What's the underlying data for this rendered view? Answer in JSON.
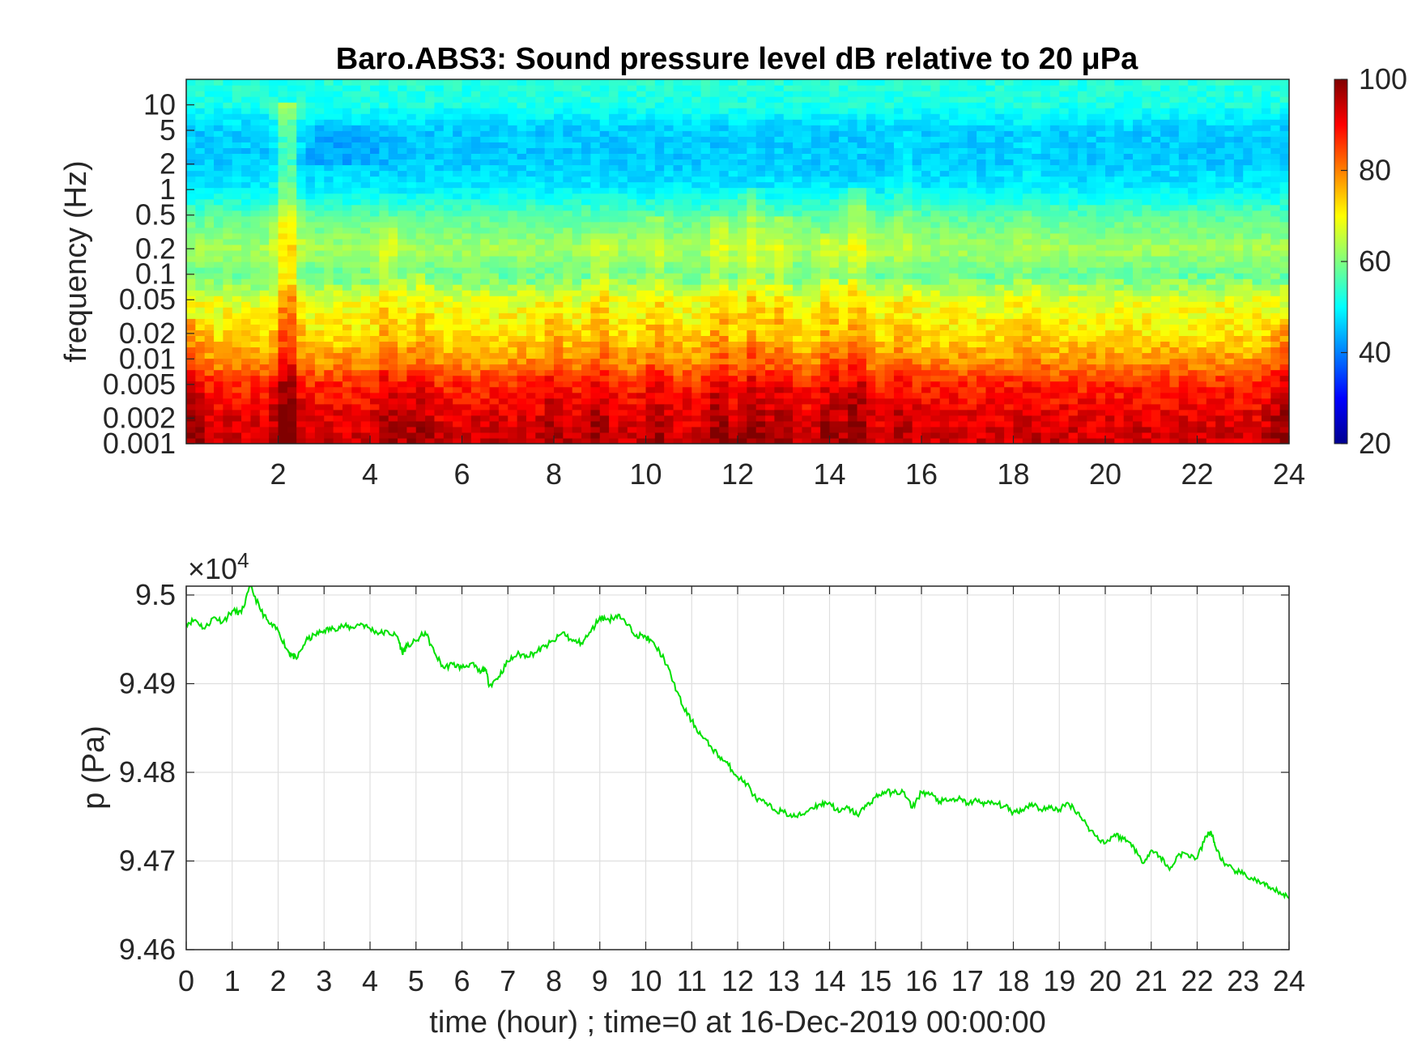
{
  "chart_data": [
    {
      "type": "heatmap",
      "title": "Baro.ABS3: Sound pressure level dB relative to 20 μPa",
      "xlabel": "",
      "ylabel": "frequency (Hz)",
      "xlim": [
        0,
        24
      ],
      "x_ticks": [
        "2",
        "4",
        "6",
        "8",
        "10",
        "12",
        "14",
        "16",
        "18",
        "20",
        "22",
        "24"
      ],
      "x_tick_values": [
        2,
        4,
        6,
        8,
        10,
        12,
        14,
        16,
        18,
        20,
        22,
        24
      ],
      "y_scale": "log",
      "ylim": [
        0.001,
        20
      ],
      "y_ticks": [
        "0.001",
        "0.002",
        "0.005",
        "0.01",
        "0.02",
        "0.05",
        "0.1",
        "0.2",
        "0.5",
        "1",
        "2",
        "5",
        "10"
      ],
      "y_tick_values": [
        0.001,
        0.002,
        0.005,
        0.01,
        0.02,
        0.05,
        0.1,
        0.2,
        0.5,
        1,
        2,
        5,
        10
      ],
      "colormap": "jet",
      "colorbar": {
        "range": [
          20,
          100
        ],
        "ticks": [
          "20",
          "40",
          "60",
          "80",
          "100"
        ],
        "tick_values": [
          20,
          40,
          60,
          80,
          100
        ]
      },
      "level_by_frequency": [
        {
          "freq": 0.001,
          "db": 94
        },
        {
          "freq": 0.002,
          "db": 92
        },
        {
          "freq": 0.005,
          "db": 87
        },
        {
          "freq": 0.01,
          "db": 78
        },
        {
          "freq": 0.02,
          "db": 72
        },
        {
          "freq": 0.05,
          "db": 68
        },
        {
          "freq": 0.1,
          "db": 58
        },
        {
          "freq": 0.2,
          "db": 63
        },
        {
          "freq": 0.5,
          "db": 57
        },
        {
          "freq": 1,
          "db": 49
        },
        {
          "freq": 2,
          "db": 46
        },
        {
          "freq": 5,
          "db": 46
        },
        {
          "freq": 10,
          "db": 52
        },
        {
          "freq": 20,
          "db": 53
        }
      ],
      "bursts": [
        {
          "hour": 2.2,
          "db_added": 12,
          "top_freq": 10
        },
        {
          "hour": 4.4,
          "db_added": 5,
          "top_freq": 0.5
        },
        {
          "hour": 5.1,
          "db_added": 4,
          "top_freq": 0.1
        },
        {
          "hour": 8.0,
          "db_added": 4,
          "top_freq": 0.05
        },
        {
          "hour": 9.0,
          "db_added": 5,
          "top_freq": 0.3
        },
        {
          "hour": 10.2,
          "db_added": 4,
          "top_freq": 0.5
        },
        {
          "hour": 11.6,
          "db_added": 6,
          "top_freq": 0.5
        },
        {
          "hour": 12.3,
          "db_added": 6,
          "top_freq": 1
        },
        {
          "hour": 12.9,
          "db_added": 5,
          "top_freq": 0.5
        },
        {
          "hour": 14.0,
          "db_added": 5,
          "top_freq": 0.3
        },
        {
          "hour": 14.6,
          "db_added": 7,
          "top_freq": 1
        },
        {
          "hour": 15.6,
          "db_added": 3,
          "top_freq": 5
        },
        {
          "hour": 18.3,
          "db_added": 2,
          "top_freq": 10
        }
      ]
    },
    {
      "type": "line",
      "xlabel": "time (hour) ; time=0 at 16-Dec-2019 00:00:00",
      "ylabel": "p (Pa)",
      "y_exponent_label": "×10",
      "y_exponent": "4",
      "xlim": [
        0,
        24
      ],
      "ylim": [
        9.46,
        9.501
      ],
      "x_ticks": [
        "0",
        "1",
        "2",
        "3",
        "4",
        "5",
        "6",
        "7",
        "8",
        "9",
        "10",
        "11",
        "12",
        "13",
        "14",
        "15",
        "16",
        "17",
        "18",
        "19",
        "20",
        "21",
        "22",
        "23",
        "24"
      ],
      "x_tick_values": [
        0,
        1,
        2,
        3,
        4,
        5,
        6,
        7,
        8,
        9,
        10,
        11,
        12,
        13,
        14,
        15,
        16,
        17,
        18,
        19,
        20,
        21,
        22,
        23,
        24
      ],
      "y_ticks": [
        "9.46",
        "9.47",
        "9.48",
        "9.49",
        "9.5"
      ],
      "y_tick_values": [
        9.46,
        9.47,
        9.48,
        9.49,
        9.5
      ],
      "grid": true,
      "line_color": "#00e000",
      "x": [
        0,
        0.2,
        0.4,
        0.6,
        0.8,
        1.0,
        1.2,
        1.4,
        1.6,
        1.8,
        2.0,
        2.2,
        2.3,
        2.4,
        2.6,
        2.8,
        3.0,
        3.2,
        3.4,
        3.6,
        3.8,
        4.0,
        4.2,
        4.4,
        4.6,
        4.7,
        4.8,
        5.0,
        5.2,
        5.4,
        5.6,
        5.8,
        6.0,
        6.2,
        6.4,
        6.5,
        6.6,
        6.8,
        7.0,
        7.2,
        7.4,
        7.6,
        7.8,
        8.0,
        8.2,
        8.4,
        8.6,
        8.8,
        9.0,
        9.2,
        9.4,
        9.6,
        9.8,
        10.0,
        10.2,
        10.4,
        10.6,
        10.8,
        11.0,
        11.2,
        11.4,
        11.6,
        11.8,
        12.0,
        12.2,
        12.4,
        12.6,
        12.8,
        13.0,
        13.2,
        13.4,
        13.6,
        13.8,
        14.0,
        14.2,
        14.4,
        14.6,
        14.8,
        15.0,
        15.2,
        15.4,
        15.6,
        15.8,
        16.0,
        16.2,
        16.4,
        16.6,
        16.8,
        17.0,
        17.2,
        17.4,
        17.6,
        17.8,
        18.0,
        18.2,
        18.4,
        18.6,
        18.8,
        19.0,
        19.2,
        19.4,
        19.6,
        19.8,
        20.0,
        20.2,
        20.4,
        20.6,
        20.8,
        21.0,
        21.2,
        21.4,
        21.6,
        21.8,
        22.0,
        22.2,
        22.3,
        22.4,
        22.6,
        22.8,
        23.0,
        23.2,
        23.4,
        23.6,
        23.8,
        24.0
      ],
      "y": [
        9.4968,
        9.4972,
        9.4962,
        9.4975,
        9.497,
        9.4982,
        9.498,
        9.501,
        9.4985,
        9.4968,
        9.496,
        9.4938,
        9.4932,
        9.4928,
        9.4948,
        9.4955,
        9.496,
        9.4962,
        9.4965,
        9.4963,
        9.4968,
        9.4962,
        9.4957,
        9.4958,
        9.4953,
        9.4935,
        9.4942,
        9.4948,
        9.4958,
        9.4935,
        9.4918,
        9.4922,
        9.4918,
        9.4923,
        9.4912,
        9.4918,
        9.4898,
        9.4908,
        9.4925,
        9.4933,
        9.4932,
        9.4935,
        9.4942,
        9.4948,
        9.4958,
        9.4948,
        9.4946,
        9.4958,
        9.4975,
        9.4972,
        9.4978,
        9.4966,
        9.4955,
        9.4953,
        9.4943,
        9.4928,
        9.4902,
        9.4875,
        9.4858,
        9.4842,
        9.483,
        9.4818,
        9.4808,
        9.4795,
        9.4787,
        9.477,
        9.4765,
        9.4758,
        9.4755,
        9.475,
        9.4752,
        9.476,
        9.4764,
        9.4766,
        9.4755,
        9.476,
        9.4752,
        9.4762,
        9.4772,
        9.4778,
        9.4777,
        9.4778,
        9.476,
        9.4778,
        9.4775,
        9.4767,
        9.4768,
        9.477,
        9.4765,
        9.4768,
        9.4765,
        9.4765,
        9.4762,
        9.4755,
        9.4758,
        9.4765,
        9.4758,
        9.476,
        9.4758,
        9.4765,
        9.4755,
        9.474,
        9.4728,
        9.472,
        9.473,
        9.4725,
        9.4718,
        9.4698,
        9.4712,
        9.4705,
        9.469,
        9.4708,
        9.4707,
        9.4703,
        9.4728,
        9.4733,
        9.4716,
        9.4695,
        9.469,
        9.4685,
        9.468,
        9.4675,
        9.4668,
        9.4665,
        9.4658
      ]
    }
  ]
}
